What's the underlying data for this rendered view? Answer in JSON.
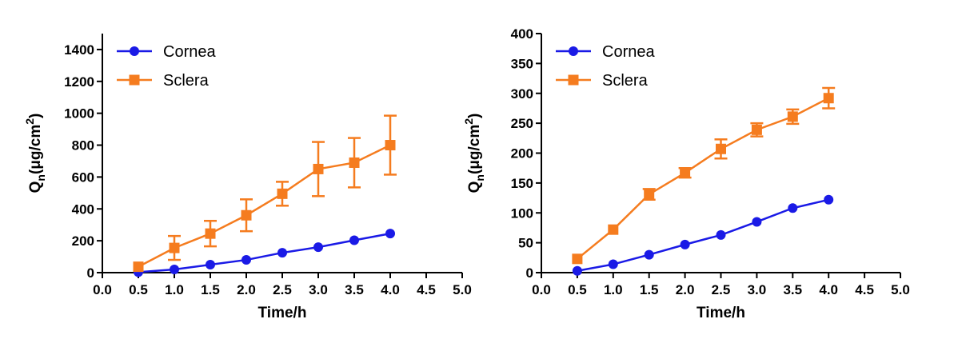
{
  "colors": {
    "cornea": "#1a1ae6",
    "sclera": "#f57c1f",
    "axis": "#000000"
  },
  "chart_data": [
    {
      "type": "line",
      "x": [
        0.5,
        1.0,
        1.5,
        2.0,
        2.5,
        3.0,
        3.5,
        4.0
      ],
      "xlim": [
        0,
        5
      ],
      "ylim": [
        0,
        1500
      ],
      "xticks": [
        0.0,
        0.5,
        1.0,
        1.5,
        2.0,
        2.5,
        3.0,
        3.5,
        4.0,
        4.5,
        5.0
      ],
      "xtick_labels": [
        "0.0",
        "0.5",
        "1.0",
        "1.5",
        "2.0",
        "2.5",
        "3.0",
        "3.5",
        "4.0",
        "4.5",
        "5.0"
      ],
      "yticks": [
        0,
        200,
        400,
        600,
        800,
        1000,
        1200,
        1400
      ],
      "ytick_labels": [
        "0",
        "200",
        "400",
        "600",
        "800",
        "1000",
        "1200",
        "1400"
      ],
      "xlabel": "Time/h",
      "ylabel": {
        "base": "Q",
        "sub": "n",
        "unit": "(μg/cm",
        "sup": "2",
        "close": ")"
      },
      "legend_position": "top-left",
      "series": [
        {
          "name": "Cornea",
          "marker": "circle",
          "values": [
            3,
            20,
            50,
            80,
            125,
            160,
            203,
            245
          ],
          "errors": [
            0,
            0,
            0,
            0,
            0,
            0,
            0,
            0
          ]
        },
        {
          "name": "Sclera",
          "marker": "square",
          "values": [
            37,
            155,
            245,
            360,
            495,
            650,
            690,
            800
          ],
          "errors": [
            0,
            75,
            80,
            100,
            75,
            170,
            155,
            185
          ]
        }
      ]
    },
    {
      "type": "line",
      "x": [
        0.5,
        1.0,
        1.5,
        2.0,
        2.5,
        3.0,
        3.5,
        4.0
      ],
      "xlim": [
        0,
        5
      ],
      "ylim": [
        0,
        400
      ],
      "xticks": [
        0.0,
        0.5,
        1.0,
        1.5,
        2.0,
        2.5,
        3.0,
        3.5,
        4.0,
        4.5,
        5.0
      ],
      "xtick_labels": [
        "0.0",
        "0.5",
        "1.0",
        "1.5",
        "2.0",
        "2.5",
        "3.0",
        "3.5",
        "4.0",
        "4.5",
        "5.0"
      ],
      "yticks": [
        0,
        50,
        100,
        150,
        200,
        250,
        300,
        350,
        400
      ],
      "ytick_labels": [
        "0",
        "50",
        "100",
        "150",
        "200",
        "250",
        "300",
        "350",
        "400"
      ],
      "xlabel": "Time/h",
      "ylabel": {
        "base": "Q",
        "sub": "n",
        "unit": "(μg/cm",
        "sup": "2",
        "close": ")"
      },
      "legend_position": "top-left",
      "series": [
        {
          "name": "Cornea",
          "marker": "circle",
          "values": [
            3,
            14,
            30,
            47,
            63,
            85,
            108,
            122
          ],
          "errors": [
            0,
            0,
            0,
            0,
            0,
            0,
            0,
            0
          ]
        },
        {
          "name": "Sclera",
          "marker": "square",
          "values": [
            23,
            72,
            131,
            167,
            207,
            239,
            261,
            292
          ],
          "errors": [
            0,
            0,
            9,
            8,
            16,
            11,
            12,
            17
          ]
        }
      ]
    }
  ]
}
